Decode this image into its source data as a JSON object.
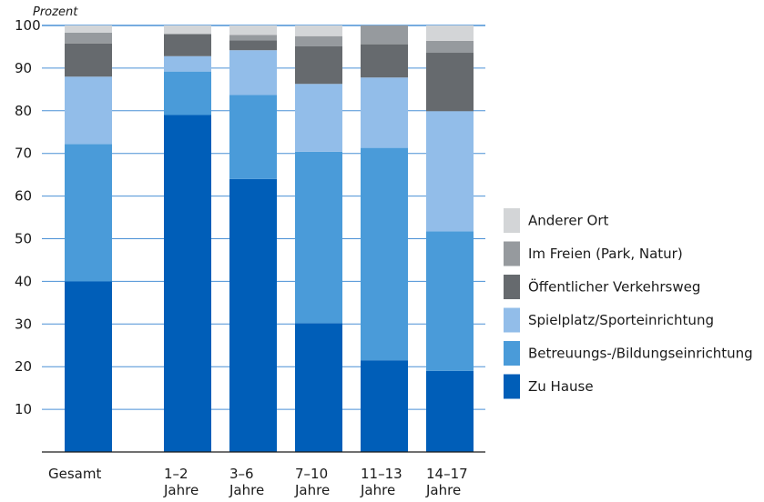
{
  "chart_data": {
    "type": "bar",
    "stacked": true,
    "title": "",
    "xlabel": "",
    "ylabel": "Prozent",
    "ylim": [
      0,
      100
    ],
    "yticks": [
      10,
      20,
      30,
      40,
      50,
      60,
      70,
      80,
      90,
      100
    ],
    "grid": true,
    "legend_position": "right",
    "categories": [
      [
        "Gesamt"
      ],
      [
        "1–2",
        "Jahre"
      ],
      [
        "3–6",
        "Jahre"
      ],
      [
        "7–10",
        "Jahre"
      ],
      [
        "11–13",
        "Jahre"
      ],
      [
        "14–17",
        "Jahre"
      ]
    ],
    "series": [
      {
        "name": "Zu Hause",
        "color": "#005eb8",
        "values": [
          40,
          79,
          64,
          30.2,
          21.5,
          19
        ]
      },
      {
        "name": "Betreuungs-/Bildungseinrichtung",
        "color": "#4a9bd9",
        "values": [
          32.2,
          10.2,
          19.7,
          40.2,
          49.8,
          32.7
        ]
      },
      {
        "name": "Spielplatz/Sporteinrichtung",
        "color": "#92bde9",
        "values": [
          15.8,
          3.6,
          10.5,
          15.9,
          16.5,
          28.2
        ]
      },
      {
        "name": "Öffentlicher Verkehrsweg",
        "color": "#666a6e",
        "values": [
          7.8,
          5.2,
          2.3,
          8.8,
          7.8,
          13.7
        ]
      },
      {
        "name": "Im Freien (Park, Natur)",
        "color": "#969a9e",
        "values": [
          2.5,
          0,
          1.3,
          2.4,
          4.4,
          2.8
        ]
      },
      {
        "name": "Anderer Ort",
        "color": "#d3d5d7",
        "values": [
          1.7,
          2,
          2.2,
          2.5,
          0,
          3.6
        ]
      }
    ],
    "colors": {
      "gridline": "#4a90d6",
      "axis": "#1a1a1a"
    }
  }
}
